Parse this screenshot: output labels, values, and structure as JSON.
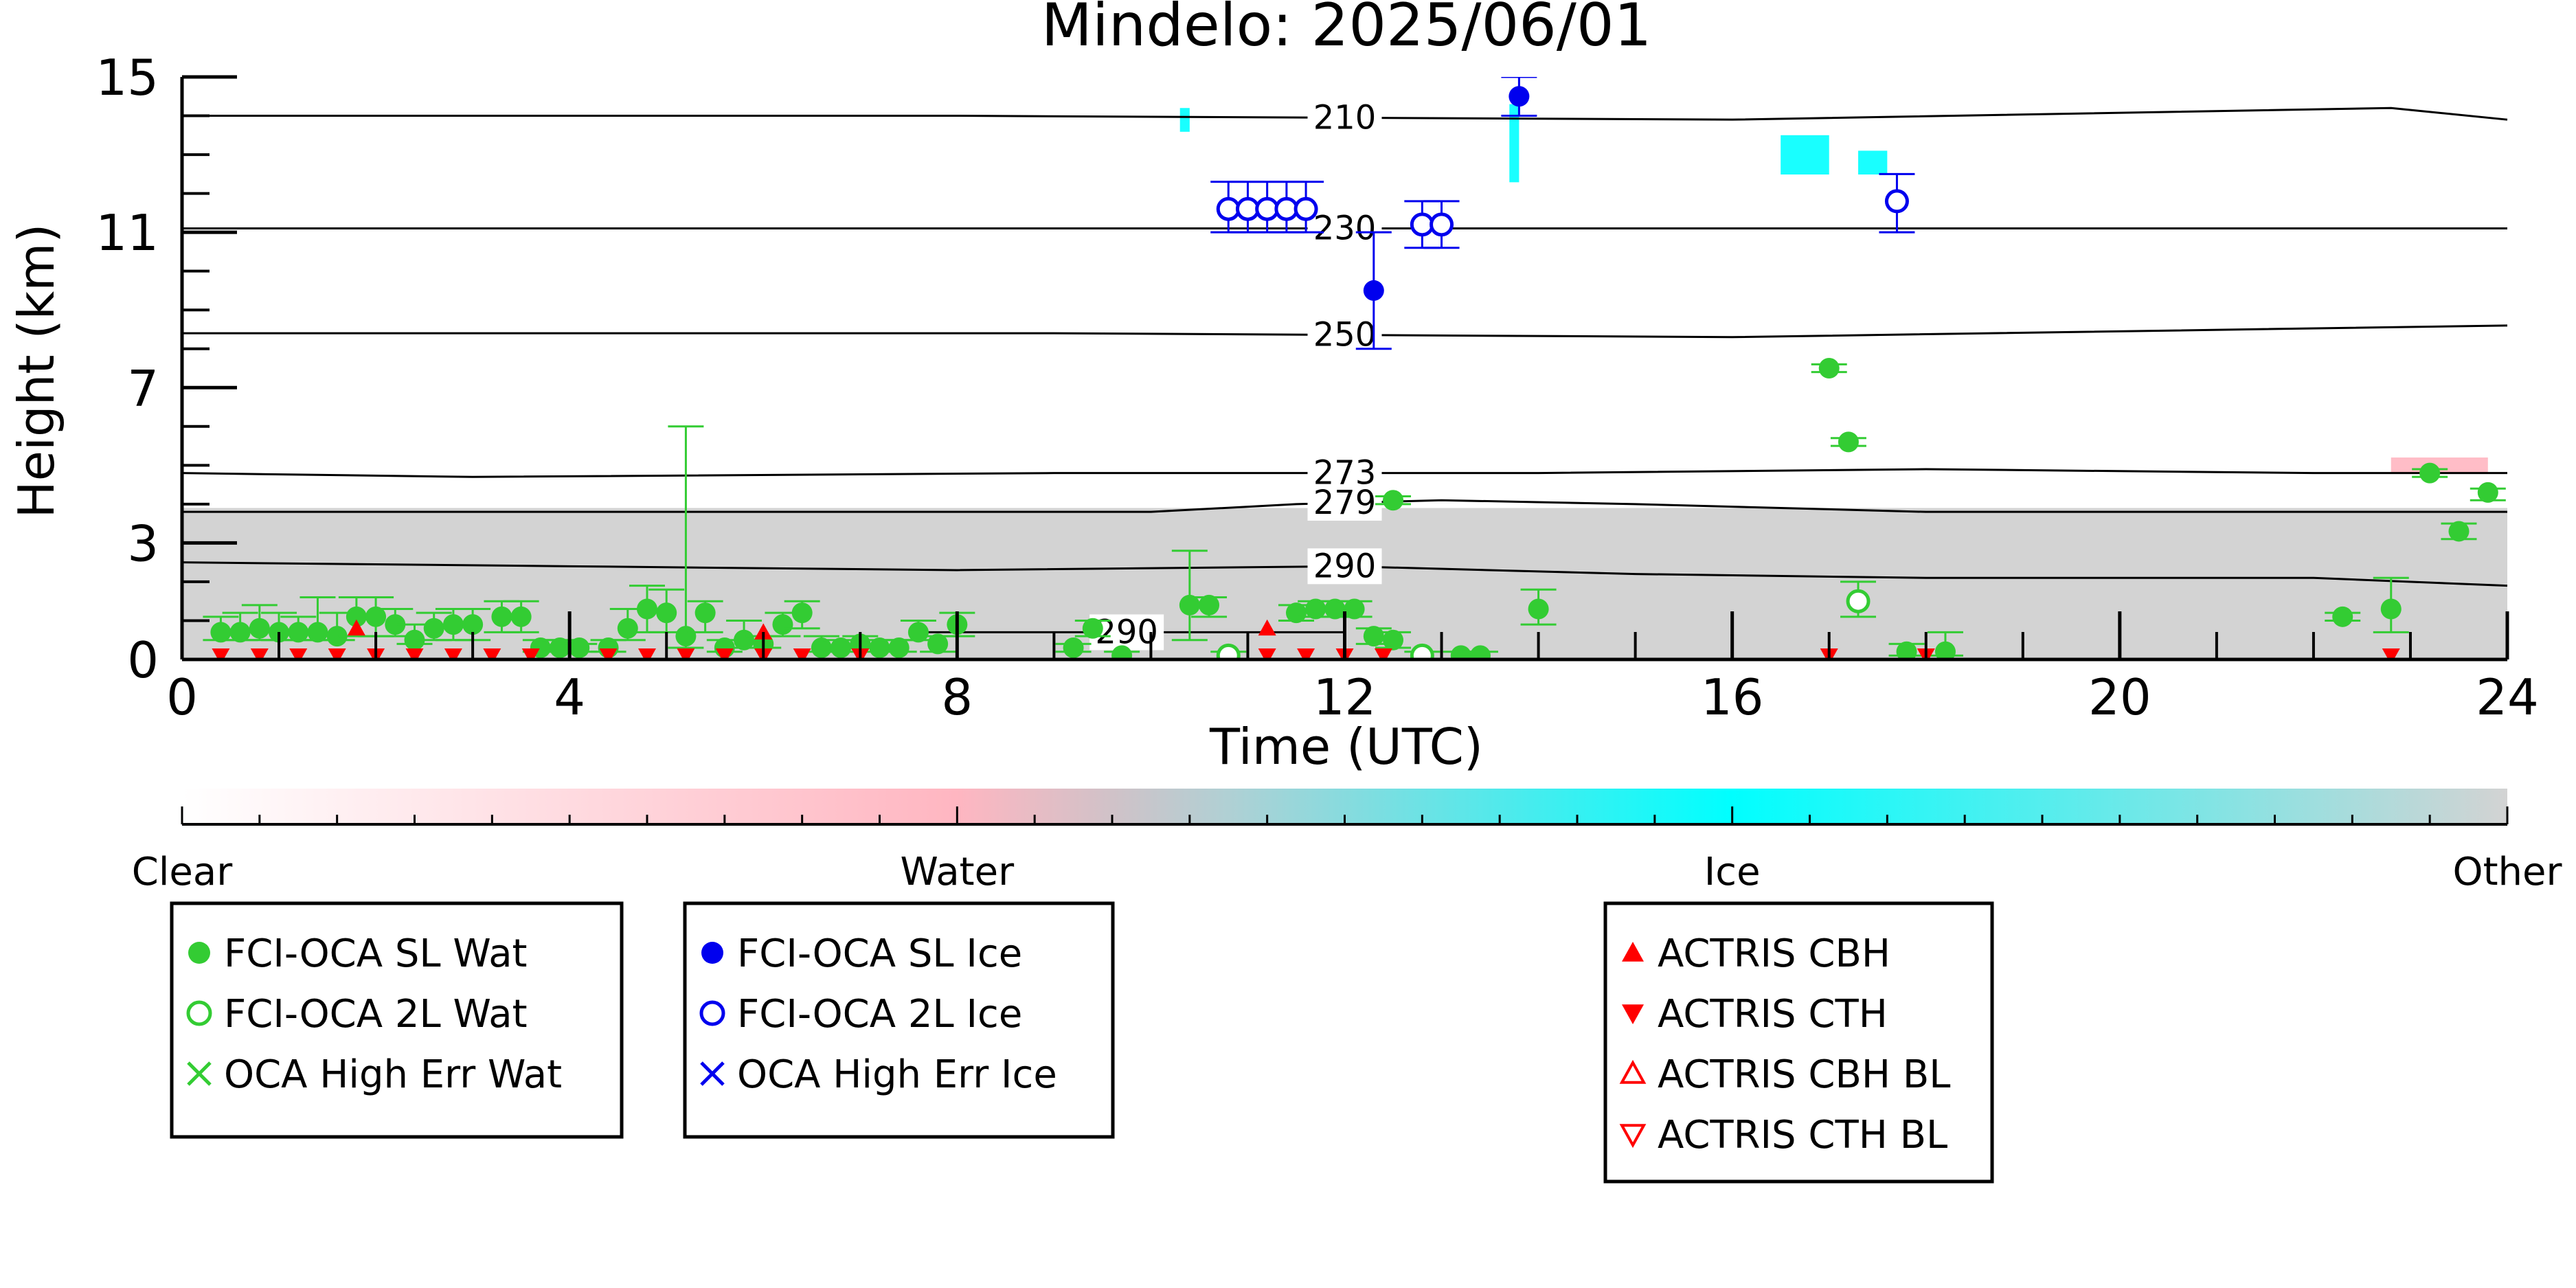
{
  "chart_data": {
    "type": "scatter",
    "title": "Mindelo: 2025/06/01",
    "xlabel": "Time (UTC)",
    "ylabel": "Height (km)",
    "xlim": [
      0,
      24
    ],
    "ylim": [
      0,
      15
    ],
    "x_ticks": [
      "0",
      "4",
      "8",
      "12",
      "16",
      "20",
      "24"
    ],
    "y_ticks": [
      "0",
      "3",
      "7",
      "11",
      "15"
    ],
    "isotherms": [
      {
        "label": "210",
        "x": [
          0,
          8,
          16,
          22.8,
          24
        ],
        "y": [
          14.0,
          14.0,
          13.9,
          14.2,
          13.9
        ]
      },
      {
        "label": "230",
        "x": [
          0,
          12,
          24
        ],
        "y": [
          11.1,
          11.1,
          11.1
        ]
      },
      {
        "label": "250",
        "x": [
          0,
          9,
          16,
          24
        ],
        "y": [
          8.4,
          8.4,
          8.3,
          8.6
        ]
      },
      {
        "label": "273",
        "x": [
          0,
          3,
          9,
          14,
          18,
          22,
          24
        ],
        "y": [
          4.8,
          4.7,
          4.8,
          4.8,
          4.9,
          4.8,
          4.8
        ]
      },
      {
        "label": "279",
        "x": [
          0,
          10,
          11.5,
          13,
          15,
          18,
          24
        ],
        "y": [
          3.8,
          3.8,
          4.0,
          4.1,
          4.0,
          3.8,
          3.8
        ]
      },
      {
        "label": "290",
        "x": [
          0,
          4,
          8,
          12,
          15,
          18,
          22,
          24
        ],
        "y": [
          2.5,
          2.4,
          2.3,
          2.4,
          2.2,
          2.1,
          2.1,
          1.9
        ]
      },
      {
        "label": "290",
        "x": [
          7.5,
          12
        ],
        "y": [
          0.7,
          0.7
        ]
      }
    ],
    "colorbar": {
      "labels": [
        "Clear",
        "Water",
        "Ice",
        "Other"
      ],
      "colors": [
        "#ffffff",
        "#ffb6c1",
        "#00ffff",
        "#d3d3d3"
      ]
    },
    "series": [
      {
        "name": "FCI-OCA SL Wat",
        "color": "#33cc33",
        "marker": "filled-circle",
        "points": [
          [
            0.4,
            0.7,
            0.5,
            1.1
          ],
          [
            0.6,
            0.7,
            0.5,
            1.2
          ],
          [
            0.8,
            0.8,
            0.5,
            1.4
          ],
          [
            1.0,
            0.7,
            0.5,
            1.2
          ],
          [
            1.2,
            0.7,
            0.5,
            1.1
          ],
          [
            1.4,
            0.7,
            0.5,
            1.6
          ],
          [
            1.6,
            0.6,
            0.5,
            1.2
          ],
          [
            1.8,
            1.1,
            0.6,
            1.6
          ],
          [
            2.0,
            1.1,
            0.6,
            1.6
          ],
          [
            2.2,
            0.9,
            0.6,
            1.3
          ],
          [
            2.4,
            0.5,
            0.4,
            0.9
          ],
          [
            2.6,
            0.8,
            0.5,
            1.2
          ],
          [
            2.8,
            0.9,
            0.5,
            1.3
          ],
          [
            3.0,
            0.9,
            0.5,
            1.3
          ],
          [
            3.3,
            1.1,
            0.7,
            1.5
          ],
          [
            3.5,
            1.1,
            0.7,
            1.5
          ],
          [
            3.7,
            0.3,
            0.2,
            0.5
          ],
          [
            3.9,
            0.3,
            0.2,
            0.5
          ],
          [
            4.1,
            0.3,
            0.2,
            0.4
          ],
          [
            4.4,
            0.3,
            0.2,
            0.5
          ],
          [
            4.6,
            0.8,
            0.5,
            1.3
          ],
          [
            4.8,
            1.3,
            0.7,
            1.9
          ],
          [
            5.0,
            1.2,
            0.7,
            1.8
          ],
          [
            5.2,
            0.6,
            0.3,
            6.0
          ],
          [
            5.4,
            1.2,
            0.7,
            1.5
          ],
          [
            5.6,
            0.3,
            0.2,
            0.5
          ],
          [
            5.8,
            0.5,
            0.3,
            1.0
          ],
          [
            6.0,
            0.4,
            0.3,
            0.6
          ],
          [
            6.2,
            0.9,
            0.6,
            1.2
          ],
          [
            6.4,
            1.2,
            0.8,
            1.5
          ],
          [
            6.6,
            0.3,
            0.2,
            0.6
          ],
          [
            6.8,
            0.3,
            0.2,
            0.5
          ],
          [
            7.0,
            0.4,
            0.3,
            0.6
          ],
          [
            7.2,
            0.3,
            0.2,
            0.5
          ],
          [
            7.4,
            0.3,
            0.2,
            0.5
          ],
          [
            7.6,
            0.7,
            0.5,
            1.0
          ],
          [
            7.8,
            0.4,
            0.2,
            0.6
          ],
          [
            8.0,
            0.9,
            0.6,
            1.2
          ],
          [
            9.2,
            0.3,
            0.2,
            0.4
          ],
          [
            9.4,
            0.8,
            0.6,
            1.0
          ],
          [
            9.7,
            0.1,
            0.0,
            0.2
          ],
          [
            10.4,
            1.4,
            0.5,
            2.8
          ],
          [
            10.6,
            1.4,
            1.1,
            1.6
          ],
          [
            11.5,
            1.2,
            1.0,
            1.4
          ],
          [
            11.7,
            1.3,
            1.1,
            1.5
          ],
          [
            11.9,
            1.3,
            1.1,
            1.5
          ],
          [
            12.1,
            1.3,
            1.1,
            1.5
          ],
          [
            12.3,
            0.6,
            0.4,
            0.8
          ],
          [
            12.5,
            0.5,
            0.3,
            0.7
          ],
          [
            12.5,
            4.1,
            4.0,
            4.2
          ],
          [
            13.2,
            0.1,
            0.0,
            0.2
          ],
          [
            13.4,
            0.1,
            0.0,
            0.2
          ],
          [
            14.0,
            1.3,
            0.9,
            1.8
          ],
          [
            17.0,
            7.5,
            7.4,
            7.6
          ],
          [
            17.2,
            5.6,
            5.5,
            5.7
          ],
          [
            17.8,
            0.2,
            0.1,
            0.4
          ],
          [
            18.2,
            0.2,
            0.1,
            0.7
          ],
          [
            22.3,
            1.1,
            1.0,
            1.2
          ],
          [
            22.8,
            1.3,
            0.7,
            2.1
          ],
          [
            23.2,
            4.8,
            4.7,
            4.9
          ],
          [
            23.5,
            3.3,
            3.1,
            3.5
          ],
          [
            23.8,
            4.3,
            4.1,
            4.4
          ]
        ]
      },
      {
        "name": "FCI-OCA 2L Wat",
        "color": "#33cc33",
        "marker": "open-circle",
        "points": [
          [
            17.3,
            1.5,
            1.1,
            2.0
          ],
          [
            10.8,
            0.1,
            0.0,
            0.2
          ],
          [
            12.8,
            0.1,
            0.0,
            0.2
          ]
        ]
      },
      {
        "name": "OCA High Err Wat",
        "color": "#33cc33",
        "marker": "x",
        "points": []
      },
      {
        "name": "FCI-OCA SL Ice",
        "color": "#0000ee",
        "marker": "filled-circle",
        "points": [
          [
            12.3,
            9.5,
            8.0,
            11.0
          ],
          [
            13.8,
            14.5,
            14.0,
            15.0
          ]
        ]
      },
      {
        "name": "FCI-OCA 2L Ice",
        "color": "#0000ee",
        "marker": "open-circle",
        "points": [
          [
            10.8,
            11.6,
            11.0,
            12.3
          ],
          [
            11.0,
            11.6,
            11.0,
            12.3
          ],
          [
            11.2,
            11.6,
            11.0,
            12.3
          ],
          [
            11.4,
            11.6,
            11.0,
            12.3
          ],
          [
            11.6,
            11.6,
            11.0,
            12.3
          ],
          [
            12.8,
            11.2,
            10.6,
            11.8
          ],
          [
            13.0,
            11.2,
            10.6,
            11.8
          ],
          [
            17.7,
            11.8,
            11.0,
            12.5
          ]
        ]
      },
      {
        "name": "OCA High Err Ice",
        "color": "#0000ee",
        "marker": "x",
        "points": []
      },
      {
        "name": "ACTRIS CBH",
        "color": "#ff0000",
        "marker": "filled-triangle-up",
        "points": [
          [
            1.8,
            0.8
          ],
          [
            6.0,
            0.7
          ],
          [
            11.2,
            0.8
          ]
        ]
      },
      {
        "name": "ACTRIS CTH",
        "color": "#ff0000",
        "marker": "filled-triangle-down",
        "points": [
          [
            0.4,
            0.1
          ],
          [
            0.8,
            0.1
          ],
          [
            1.2,
            0.1
          ],
          [
            1.6,
            0.1
          ],
          [
            2.0,
            0.1
          ],
          [
            2.4,
            0.1
          ],
          [
            2.8,
            0.1
          ],
          [
            3.2,
            0.1
          ],
          [
            3.6,
            0.1
          ],
          [
            4.4,
            0.1
          ],
          [
            4.8,
            0.1
          ],
          [
            5.2,
            0.1
          ],
          [
            5.6,
            0.1
          ],
          [
            6.0,
            0.1
          ],
          [
            6.4,
            0.1
          ],
          [
            7.0,
            0.1
          ],
          [
            11.2,
            0.1
          ],
          [
            11.6,
            0.1
          ],
          [
            12.0,
            0.1
          ],
          [
            12.4,
            0.1
          ],
          [
            17.0,
            0.1
          ],
          [
            18.0,
            0.1
          ],
          [
            22.8,
            0.1
          ]
        ]
      },
      {
        "name": "ACTRIS CBH BL",
        "color": "#ff0000",
        "marker": "open-triangle-up",
        "points": []
      },
      {
        "name": "ACTRIS CTH BL",
        "color": "#ff0000",
        "marker": "open-triangle-down",
        "points": []
      }
    ],
    "legend_boxes": [
      [
        "FCI-OCA SL Wat",
        "FCI-OCA 2L Wat",
        "OCA High Err Wat"
      ],
      [
        "FCI-OCA SL Ice",
        "FCI-OCA 2L Ice",
        "OCA High Err Ice"
      ],
      [
        "ACTRIS CBH",
        "ACTRIS CTH",
        "ACTRIS CBH BL",
        "ACTRIS CTH BL"
      ]
    ],
    "cloud_mask_regions": [
      {
        "class": "Other",
        "color": "#d3d3d3",
        "x": [
          0,
          24
        ],
        "top": [
          3.9,
          3.9
        ]
      },
      {
        "class": "Ice",
        "color": "#00ffff",
        "x": [
          10.3,
          10.4
        ],
        "top": [
          13.8,
          14.2
        ]
      },
      {
        "class": "Ice",
        "color": "#00ffff",
        "x": [
          13.7,
          13.8
        ],
        "top": [
          12.5,
          14.3
        ]
      },
      {
        "class": "Ice",
        "color": "#00ffff",
        "x": [
          16.5,
          17.0
        ],
        "top": [
          12.7,
          13.5
        ]
      },
      {
        "class": "Ice",
        "color": "#00ffff",
        "x": [
          17.3,
          17.6
        ],
        "top": [
          12.7,
          13.1
        ]
      },
      {
        "class": "Water",
        "color": "#ffb6c1",
        "x": [
          22.8,
          23.8
        ],
        "top": [
          5.0,
          5.2
        ]
      }
    ]
  }
}
